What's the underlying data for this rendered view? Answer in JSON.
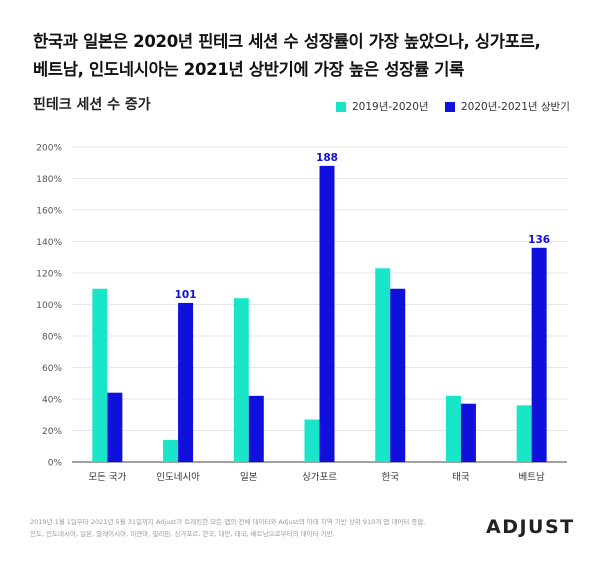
{
  "headline": {
    "line1": "한국과 일본은 2020년 핀테크 세션 수 성장률이 가장 높았으나, 싱가포르,",
    "line2": "베트남, 인도네시아는 2021년 상반기에 가장 높은 성장률 기록"
  },
  "footnote": {
    "line1": "2019년 1월 1일부터 2021년 5월 31일까지 Adjust가 트래킹한 모든 앱의 전체 데이터와 Adjust의 아태 지역 기반 상위 910개 앱 데이터 종합.",
    "line2": "인도, 인도네시아, 일본, 말레이시아, 미얀마, 필리핀, 싱가포르, 한국, 대만, 태국, 베트남으로부터의 데이터 기반."
  },
  "brand": "ADJUST",
  "colors": {
    "series1": "#19e6c8",
    "series2": "#1010dc",
    "grid": "#e6e6e6",
    "axis": "#444444"
  },
  "chart_data": {
    "type": "bar",
    "title": "핀테크 세션 수 증가",
    "categories": [
      "모든 국가",
      "인도네시아",
      "일본",
      "싱가포르",
      "한국",
      "태국",
      "베트남"
    ],
    "series": [
      {
        "name": "2019년-2020년",
        "values": [
          110,
          14,
          104,
          27,
          123,
          42,
          36
        ]
      },
      {
        "name": "2020년-2021년 상반기",
        "values": [
          44,
          101,
          42,
          188,
          110,
          37,
          136
        ]
      }
    ],
    "data_labels": [
      {
        "series": 1,
        "category": "인도네시아",
        "text": "101"
      },
      {
        "series": 1,
        "category": "싱가포르",
        "text": "188"
      },
      {
        "series": 1,
        "category": "베트남",
        "text": "136"
      }
    ],
    "ylim": [
      0,
      200
    ],
    "yticks": [
      "0%",
      "20%",
      "40%",
      "60%",
      "80%",
      "100%",
      "120%",
      "140%",
      "160%",
      "180%",
      "200%"
    ],
    "grid": true,
    "legend_position": "top-right"
  }
}
